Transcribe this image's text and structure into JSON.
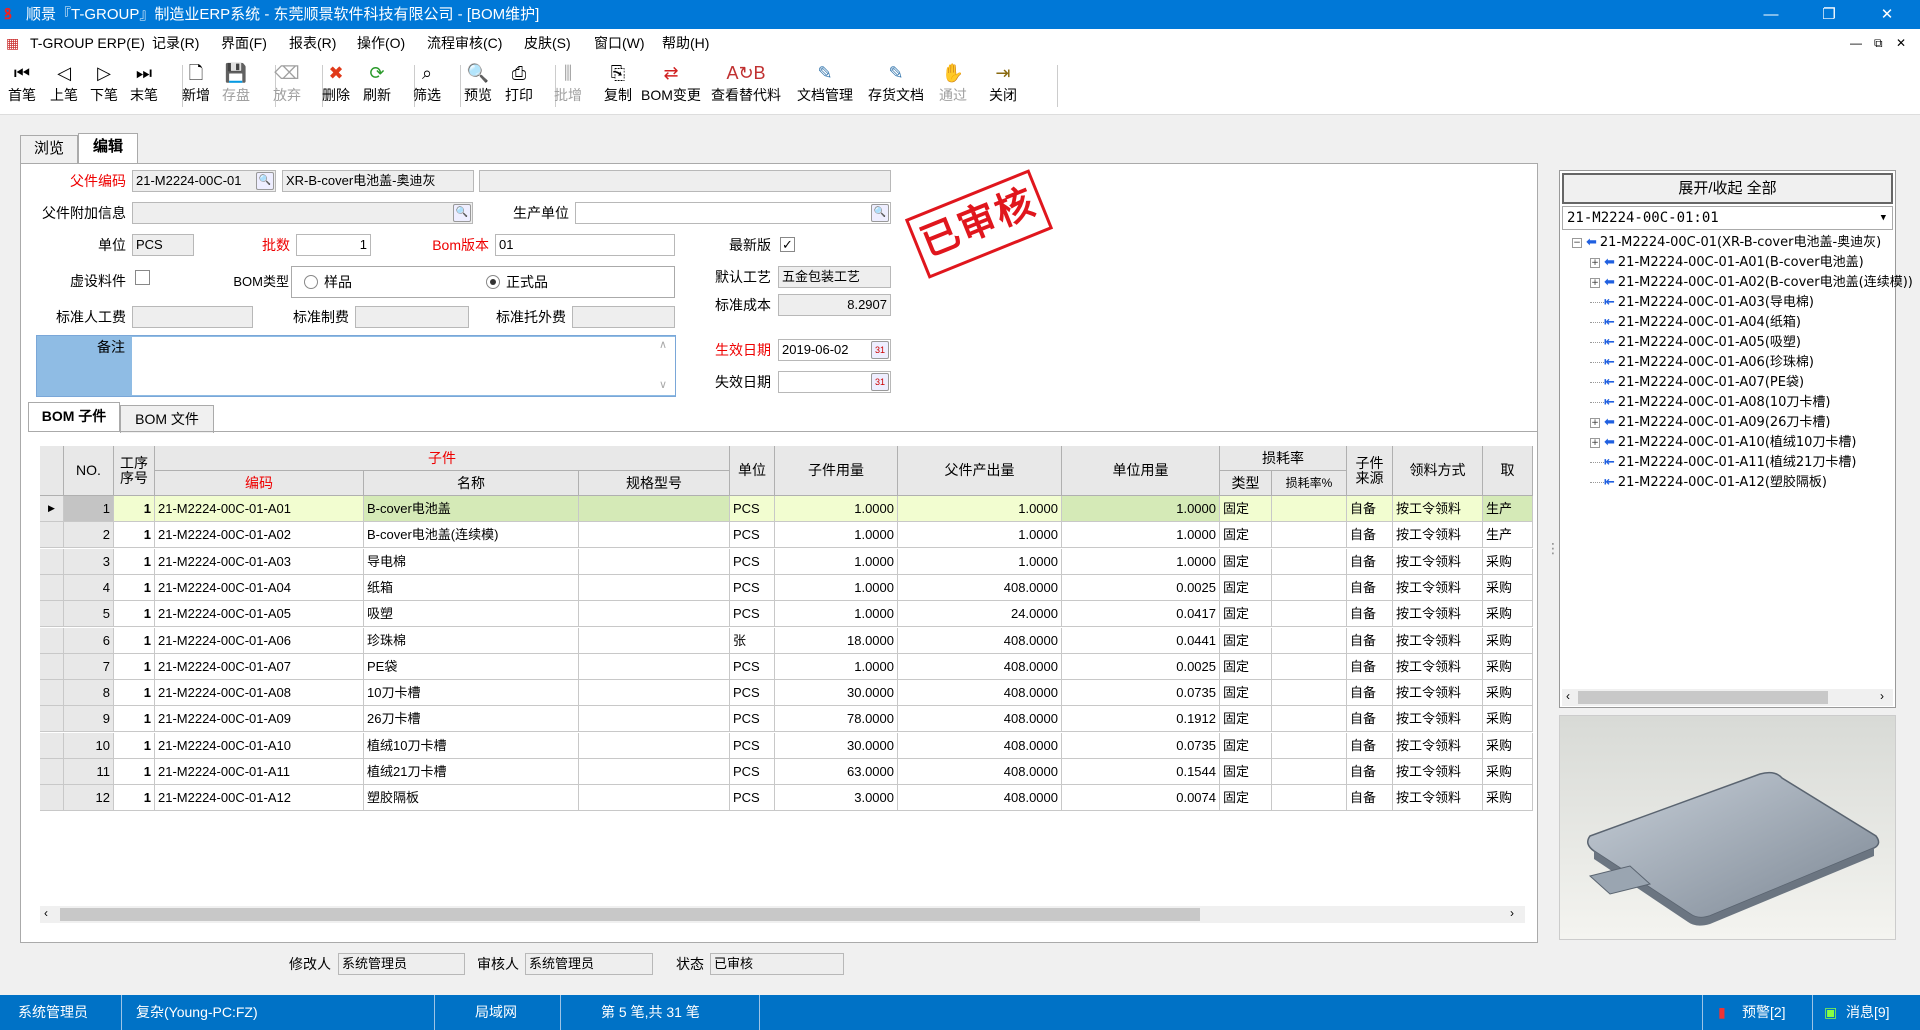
{
  "window": {
    "title": "顺景『T-GROUP』制造业ERP系统 - 东莞顺景软件科技有限公司 - [BOM维护]",
    "minimize": "—",
    "restore": "❐",
    "close": "✕"
  },
  "menu": {
    "items": [
      "T-GROUP ERP(E)",
      "记录(R)",
      "界面(F)",
      "报表(R)",
      "操作(O)",
      "流程审核(C)",
      "皮肤(S)",
      "窗口(W)",
      "帮助(H)"
    ],
    "mdi": [
      "—",
      "⧉",
      "✕"
    ]
  },
  "toolbar": [
    {
      "label": "首笔",
      "icon": "first-record-icon",
      "glyph": "⏮",
      "enabled": true
    },
    {
      "label": "上笔",
      "icon": "previous-record-icon",
      "glyph": "◁",
      "enabled": true
    },
    {
      "label": "下笔",
      "icon": "next-record-icon",
      "glyph": "▷",
      "enabled": true
    },
    {
      "label": "末笔",
      "icon": "last-record-icon",
      "glyph": "⏭",
      "enabled": true
    },
    {
      "label": "新增",
      "icon": "new-document-icon",
      "glyph": "🗋",
      "enabled": true
    },
    {
      "label": "存盘",
      "icon": "save-icon",
      "glyph": "💾",
      "enabled": false
    },
    {
      "label": "放弃",
      "icon": "eraser-icon",
      "glyph": "⌫",
      "enabled": false
    },
    {
      "label": "删除",
      "icon": "delete-icon",
      "glyph": "✖",
      "enabled": true,
      "color": "#e03a1a"
    },
    {
      "label": "刷新",
      "icon": "refresh-icon",
      "glyph": "⟳",
      "enabled": true,
      "color": "#2a9a2a"
    },
    {
      "label": "筛选",
      "icon": "binoculars-icon",
      "glyph": "⌕",
      "enabled": true
    },
    {
      "label": "预览",
      "icon": "preview-icon",
      "glyph": "🔍",
      "enabled": true
    },
    {
      "label": "打印",
      "icon": "printer-icon",
      "glyph": "⎙",
      "enabled": true
    },
    {
      "label": "批增",
      "icon": "batch-add-icon",
      "glyph": "⫼",
      "enabled": false
    },
    {
      "label": "复制",
      "icon": "copy-icon",
      "glyph": "⎘",
      "enabled": true
    },
    {
      "label": "BOM变更",
      "icon": "bom-change-icon",
      "glyph": "⇄",
      "enabled": true,
      "color": "#d02020"
    },
    {
      "label": "查看替代料",
      "icon": "substitute-icon",
      "glyph": "A↻B",
      "enabled": true,
      "color": "#c03030"
    },
    {
      "label": "文档管理",
      "icon": "document-manage-icon",
      "glyph": "✎",
      "enabled": true,
      "color": "#3a7ab0"
    },
    {
      "label": "存货文档",
      "icon": "inventory-document-icon",
      "glyph": "✎",
      "enabled": true,
      "color": "#3a7ab0"
    },
    {
      "label": "通过",
      "icon": "approve-icon",
      "glyph": "✋",
      "enabled": false
    },
    {
      "label": "关闭",
      "icon": "exit-door-icon",
      "glyph": "⇥",
      "enabled": true,
      "color": "#8a6a10"
    }
  ],
  "tabs": {
    "browse": "浏览",
    "edit": "编辑"
  },
  "form": {
    "parent_code_label": "父件编码",
    "parent_code": "21-M2224-00C-01",
    "parent_name": "XR-B-cover电池盖-奥迪灰",
    "parent_extra": "",
    "extra_info_label": "父件附加信息",
    "extra_info": "",
    "prod_unit_label": "生产单位",
    "prod_unit": "",
    "unit_label": "单位",
    "unit": "PCS",
    "batch_label": "批数",
    "batch": "1",
    "bom_version_label": "Bom版本",
    "bom_version": "01",
    "latest_label": "最新版",
    "latest": true,
    "virtual_label": "虚设料件",
    "virtual": false,
    "bom_type_label": "BOM类型",
    "bom_type_options": [
      "样品",
      "正式品"
    ],
    "bom_type_selected": "正式品",
    "default_process_label": "默认工艺",
    "default_process": "五金包装工艺",
    "std_cost_label": "标准成本",
    "std_cost": "8.2907",
    "std_labor_label": "标准人工费",
    "std_labor": "",
    "std_mfg_label": "标准制费",
    "std_mfg": "",
    "std_outsource_label": "标准托外费",
    "std_outsource": "",
    "memo_label": "备注",
    "memo": "",
    "effective_label": "生效日期",
    "effective_date": "2019-06-02",
    "expire_label": "失效日期",
    "expire_date": "",
    "calendar_glyph": "31"
  },
  "stamp": "已审核",
  "subtabs": {
    "children": "BOM 子件",
    "files": "BOM 文件"
  },
  "table": {
    "group_child": "子件",
    "group_loss": "损耗率",
    "headers": {
      "no": "NO.",
      "seq": "工序序号",
      "code": "编码",
      "name": "名称",
      "spec": "规格型号",
      "unit": "单位",
      "qty": "子件用量",
      "parent_out": "父件产出量",
      "unit_usage": "单位用量",
      "loss_type": "类型",
      "loss_rate": "损耗率%",
      "source": "子件来源",
      "pick": "领料方式",
      "price": "取"
    },
    "rows": [
      {
        "no": "1",
        "seq": "1",
        "code": "21-M2224-00C-01-A01",
        "name": "B-cover电池盖",
        "spec": "",
        "unit": "PCS",
        "qty": "1.0000",
        "parent_out": "1.0000",
        "unit_usage": "1.0000",
        "loss_type": "固定",
        "loss_rate": "",
        "source": "自备",
        "pick": "按工令领料",
        "price": "生产"
      },
      {
        "no": "2",
        "seq": "1",
        "code": "21-M2224-00C-01-A02",
        "name": "B-cover电池盖(连续模)",
        "spec": "",
        "unit": "PCS",
        "qty": "1.0000",
        "parent_out": "1.0000",
        "unit_usage": "1.0000",
        "loss_type": "固定",
        "loss_rate": "",
        "source": "自备",
        "pick": "按工令领料",
        "price": "生产"
      },
      {
        "no": "3",
        "seq": "1",
        "code": "21-M2224-00C-01-A03",
        "name": "导电棉",
        "spec": "",
        "unit": "PCS",
        "qty": "1.0000",
        "parent_out": "1.0000",
        "unit_usage": "1.0000",
        "loss_type": "固定",
        "loss_rate": "",
        "source": "自备",
        "pick": "按工令领料",
        "price": "采购"
      },
      {
        "no": "4",
        "seq": "1",
        "code": "21-M2224-00C-01-A04",
        "name": "纸箱",
        "spec": "",
        "unit": "PCS",
        "qty": "1.0000",
        "parent_out": "408.0000",
        "unit_usage": "0.0025",
        "loss_type": "固定",
        "loss_rate": "",
        "source": "自备",
        "pick": "按工令领料",
        "price": "采购"
      },
      {
        "no": "5",
        "seq": "1",
        "code": "21-M2224-00C-01-A05",
        "name": "吸塑",
        "spec": "",
        "unit": "PCS",
        "qty": "1.0000",
        "parent_out": "24.0000",
        "unit_usage": "0.0417",
        "loss_type": "固定",
        "loss_rate": "",
        "source": "自备",
        "pick": "按工令领料",
        "price": "采购"
      },
      {
        "no": "6",
        "seq": "1",
        "code": "21-M2224-00C-01-A06",
        "name": "珍珠棉",
        "spec": "",
        "unit": "张",
        "qty": "18.0000",
        "parent_out": "408.0000",
        "unit_usage": "0.0441",
        "loss_type": "固定",
        "loss_rate": "",
        "source": "自备",
        "pick": "按工令领料",
        "price": "采购"
      },
      {
        "no": "7",
        "seq": "1",
        "code": "21-M2224-00C-01-A07",
        "name": "PE袋",
        "spec": "",
        "unit": "PCS",
        "qty": "1.0000",
        "parent_out": "408.0000",
        "unit_usage": "0.0025",
        "loss_type": "固定",
        "loss_rate": "",
        "source": "自备",
        "pick": "按工令领料",
        "price": "采购"
      },
      {
        "no": "8",
        "seq": "1",
        "code": "21-M2224-00C-01-A08",
        "name": "10刀卡槽",
        "spec": "",
        "unit": "PCS",
        "qty": "30.0000",
        "parent_out": "408.0000",
        "unit_usage": "0.0735",
        "loss_type": "固定",
        "loss_rate": "",
        "source": "自备",
        "pick": "按工令领料",
        "price": "采购"
      },
      {
        "no": "9",
        "seq": "1",
        "code": "21-M2224-00C-01-A09",
        "name": "26刀卡槽",
        "spec": "",
        "unit": "PCS",
        "qty": "78.0000",
        "parent_out": "408.0000",
        "unit_usage": "0.1912",
        "loss_type": "固定",
        "loss_rate": "",
        "source": "自备",
        "pick": "按工令领料",
        "price": "采购"
      },
      {
        "no": "10",
        "seq": "1",
        "code": "21-M2224-00C-01-A10",
        "name": "植绒10刀卡槽",
        "spec": "",
        "unit": "PCS",
        "qty": "30.0000",
        "parent_out": "408.0000",
        "unit_usage": "0.0735",
        "loss_type": "固定",
        "loss_rate": "",
        "source": "自备",
        "pick": "按工令领料",
        "price": "采购"
      },
      {
        "no": "11",
        "seq": "1",
        "code": "21-M2224-00C-01-A11",
        "name": "植绒21刀卡槽",
        "spec": "",
        "unit": "PCS",
        "qty": "63.0000",
        "parent_out": "408.0000",
        "unit_usage": "0.1544",
        "loss_type": "固定",
        "loss_rate": "",
        "source": "自备",
        "pick": "按工令领料",
        "price": "采购"
      },
      {
        "no": "12",
        "seq": "1",
        "code": "21-M2224-00C-01-A12",
        "name": "塑胶隔板",
        "spec": "",
        "unit": "PCS",
        "qty": "3.0000",
        "parent_out": "408.0000",
        "unit_usage": "0.0074",
        "loss_type": "固定",
        "loss_rate": "",
        "source": "自备",
        "pick": "按工令领料",
        "price": "采购"
      }
    ],
    "selected_row": 1
  },
  "tree": {
    "header": "展开/收起 全部",
    "selector": "21-M2224-00C-01:01",
    "items": [
      {
        "text": "21-M2224-00C-01(XR-B-cover电池盖-奥迪灰)",
        "level": 0,
        "expand": "−"
      },
      {
        "text": "21-M2224-00C-01-A01(B-cover电池盖)",
        "level": 1,
        "expand": "+"
      },
      {
        "text": "21-M2224-00C-01-A02(B-cover电池盖(连续模))",
        "level": 1,
        "expand": "+"
      },
      {
        "text": "21-M2224-00C-01-A03(导电棉)",
        "level": 1
      },
      {
        "text": "21-M2224-00C-01-A04(纸箱)",
        "level": 1
      },
      {
        "text": "21-M2224-00C-01-A05(吸塑)",
        "level": 1
      },
      {
        "text": "21-M2224-00C-01-A06(珍珠棉)",
        "level": 1
      },
      {
        "text": "21-M2224-00C-01-A07(PE袋)",
        "level": 1
      },
      {
        "text": "21-M2224-00C-01-A08(10刀卡槽)",
        "level": 1
      },
      {
        "text": "21-M2224-00C-01-A09(26刀卡槽)",
        "level": 1,
        "expand": "+"
      },
      {
        "text": "21-M2224-00C-01-A10(植绒10刀卡槽)",
        "level": 1,
        "expand": "+"
      },
      {
        "text": "21-M2224-00C-01-A11(植绒21刀卡槽)",
        "level": 1
      },
      {
        "text": "21-M2224-00C-01-A12(塑胶隔板)",
        "level": 1
      }
    ]
  },
  "footer": {
    "modifier_label": "修改人",
    "modifier": "系统管理员",
    "auditor_label": "审核人",
    "auditor": "系统管理员",
    "status_label": "状态",
    "status": "已审核"
  },
  "statusbar": {
    "user": "系统管理员",
    "server": "复杂(Young-PC:FZ)",
    "network": "局域网",
    "record": "第 5 笔,共 31 笔",
    "alerts": "预警[2]",
    "messages": "消息[9]"
  }
}
